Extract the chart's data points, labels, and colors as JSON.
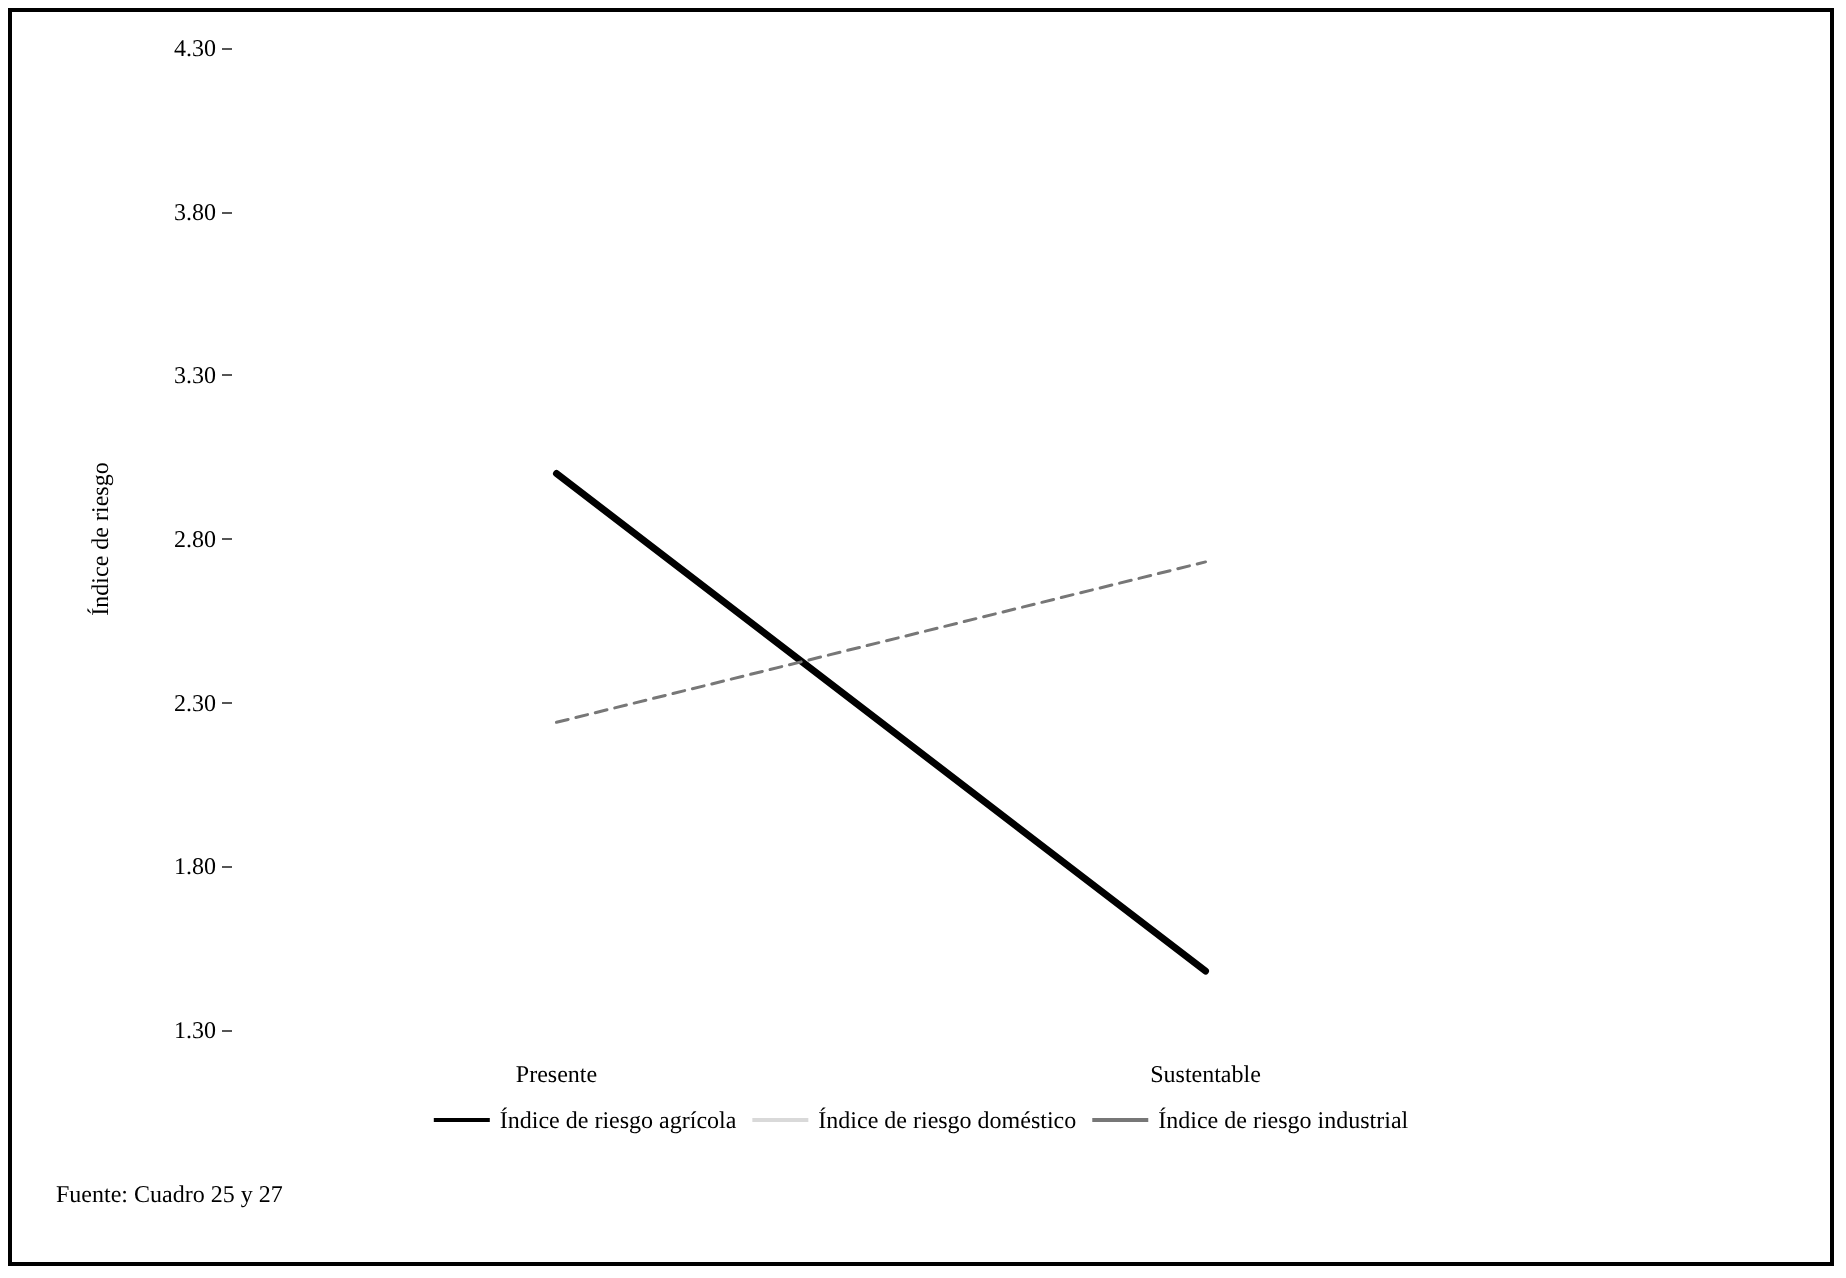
{
  "chart_data": {
    "type": "line",
    "ylabel": "Índice de riesgo",
    "categories": [
      "Presente",
      "Sustentable"
    ],
    "series": [
      {
        "name": "Índice de riesgo agrícola",
        "color": "#000000",
        "line_style": "solid",
        "values": [
          3.0,
          1.48
        ]
      },
      {
        "name": "Índice de riesgo doméstico",
        "color": "#d9d9d9",
        "line_style": "solid",
        "values": [
          null,
          null
        ]
      },
      {
        "name": "Índice de riesgo industrial",
        "color": "#777777",
        "line_style": "dashed",
        "values": [
          2.24,
          2.73
        ]
      }
    ],
    "ylim": [
      1.3,
      4.3
    ],
    "yticks": [
      {
        "value": 1.3,
        "label": "1.30"
      },
      {
        "value": 1.8,
        "label": "1.80"
      },
      {
        "value": 2.3,
        "label": "2.30"
      },
      {
        "value": 2.8,
        "label": "2.80"
      },
      {
        "value": 3.3,
        "label": "3.30"
      },
      {
        "value": 3.8,
        "label": "3.80"
      },
      {
        "value": 4.3,
        "label": "4.30"
      }
    ],
    "grid": false,
    "legend": "bottom",
    "marker": "none",
    "annotations": [
      "Fuente: Cuadro 25 y 27"
    ]
  }
}
